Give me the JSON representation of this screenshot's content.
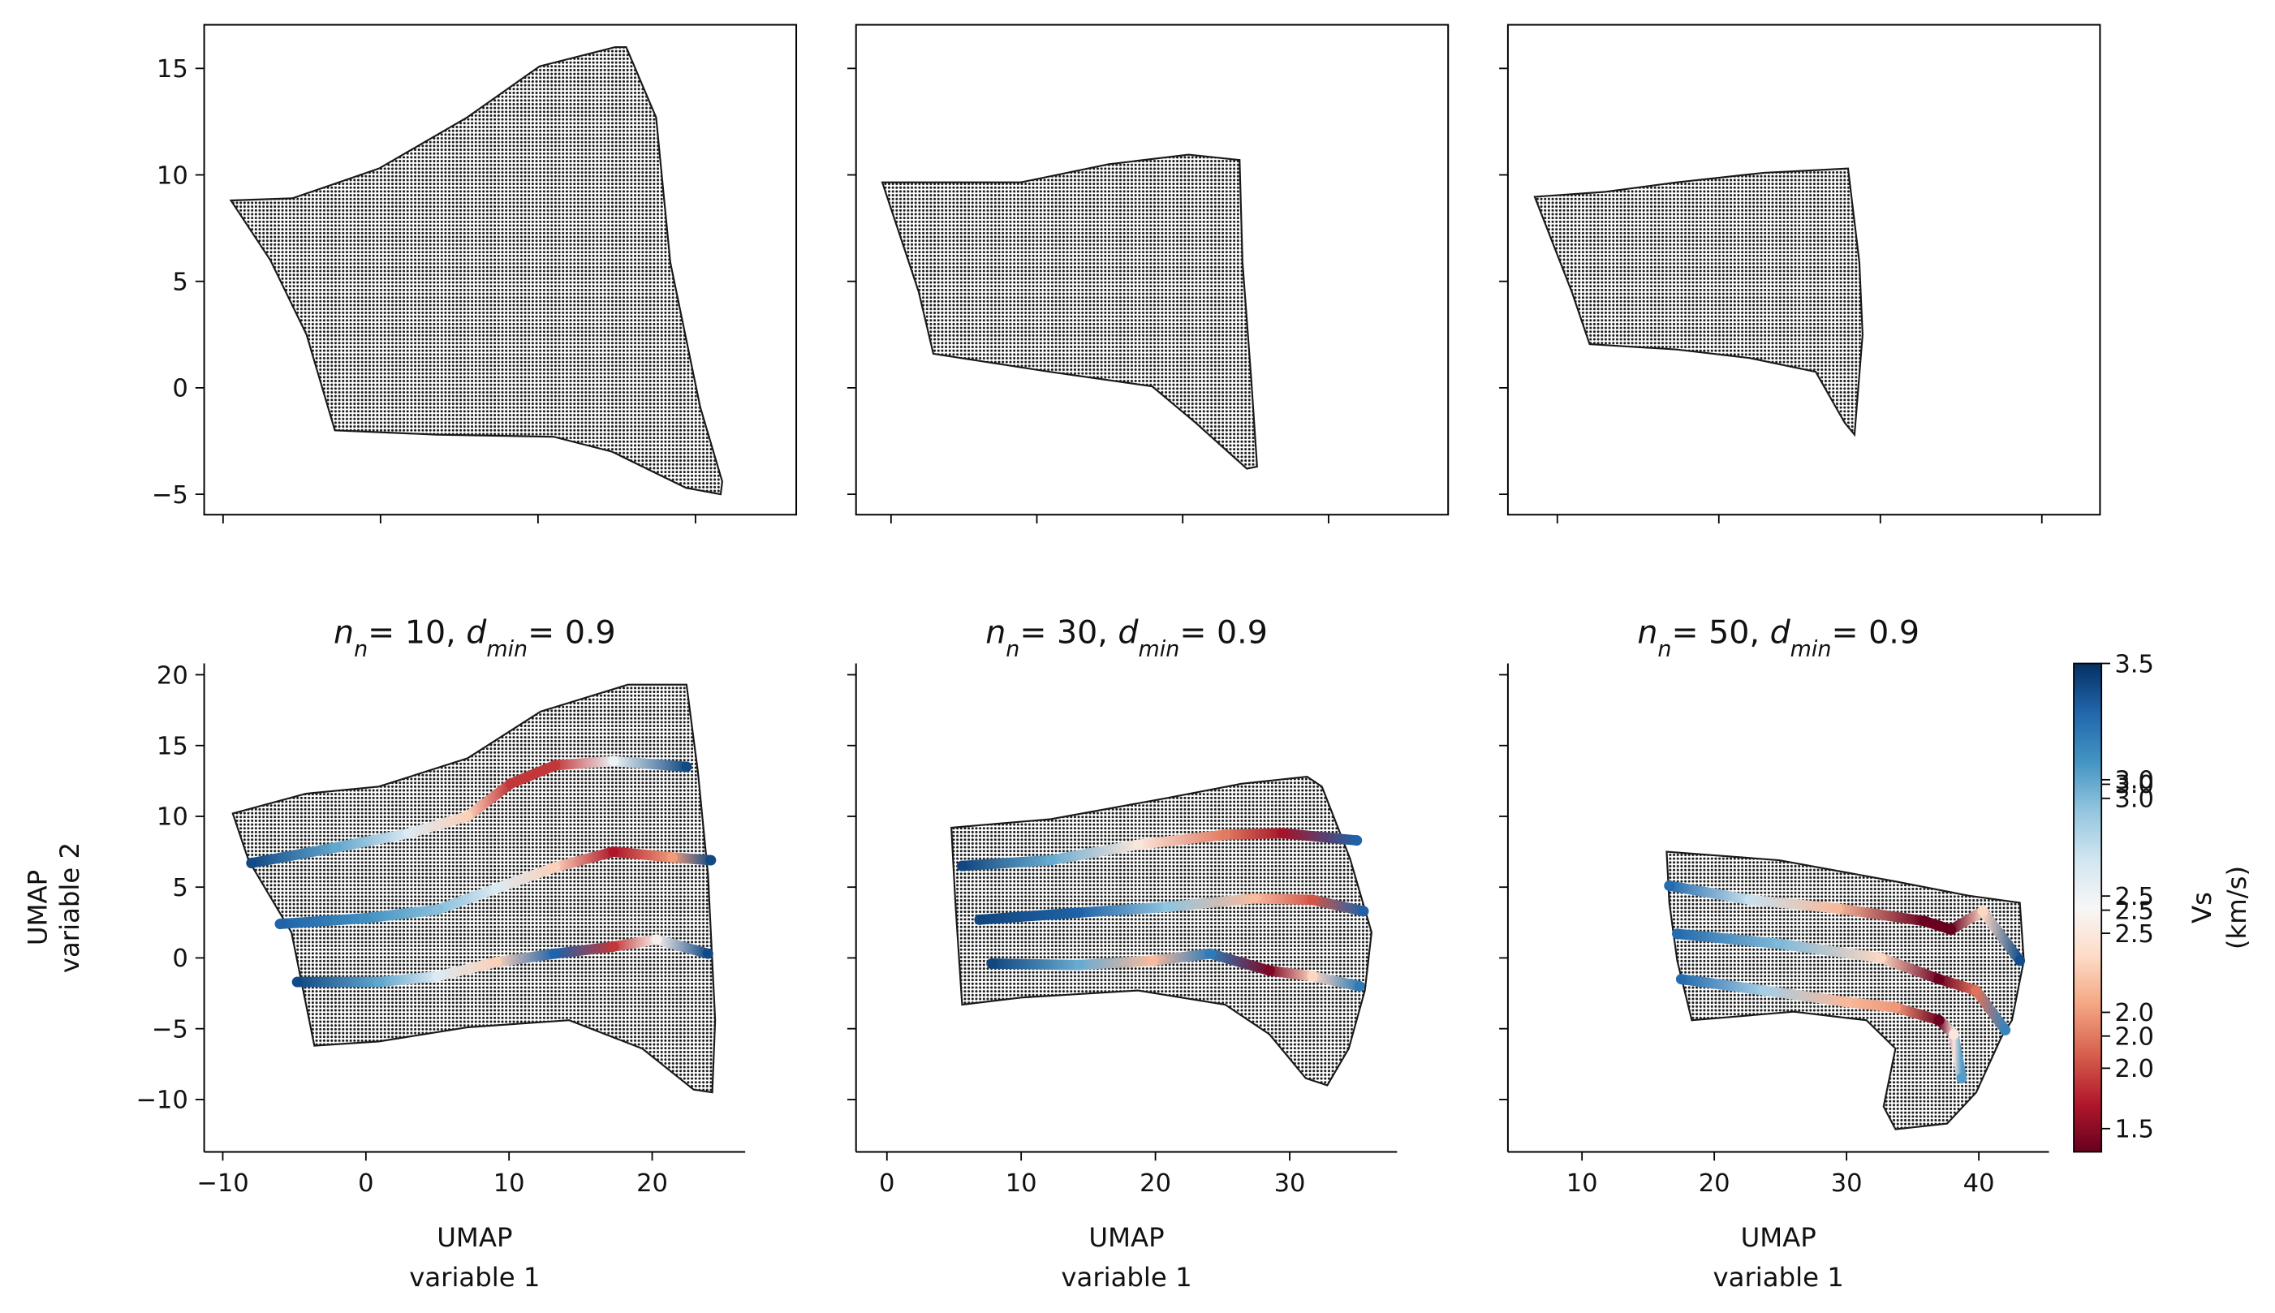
{
  "chart_data": [
    {
      "type": "scatter",
      "cloud_color": "#1a1a1a",
      "cloud": {
        "x": [
          -9.5,
          -5.6,
          -0.1,
          5.5,
          10.1,
          14.9,
          15.6,
          17.5,
          18.4,
          20.3,
          21.7,
          21.6,
          19.4,
          14.7,
          11.0,
          3.6,
          -2.9,
          -4.7,
          -7.0
        ],
        "y": [
          8.8,
          8.9,
          10.3,
          12.7,
          15.1,
          16.0,
          16.0,
          12.7,
          5.9,
          -0.9,
          -4.4,
          -5.0,
          -4.7,
          -3.0,
          -2.3,
          -2.2,
          -2.0,
          2.5,
          6.0
        ]
      },
      "xlim": [
        -11.2,
        26.4
      ],
      "ylim": [
        -5.96,
        17.05
      ],
      "xticks": [
        -10,
        0,
        10,
        20
      ],
      "show_xticklabels": false,
      "yticks": [
        {
          "value": -5,
          "label": "−5"
        },
        0,
        5,
        10,
        15
      ],
      "show_yticklabels": true,
      "spines": "box"
    },
    {
      "type": "scatter",
      "cloud_color": "#1a1a1a",
      "cloud": {
        "x": [
          -0.6,
          8.9,
          14.9,
          20.4,
          23.9,
          24.1,
          24.7,
          25.1,
          24.4,
          20.9,
          17.9,
          10.9,
          2.9,
          1.9
        ],
        "y": [
          9.65,
          9.65,
          10.5,
          10.95,
          10.7,
          5.9,
          0.4,
          -3.7,
          -3.8,
          -1.65,
          0.07,
          0.75,
          1.6,
          4.5
        ]
      },
      "xlim": [
        -2.4,
        38.2
      ],
      "ylim": [
        -5.96,
        17.05
      ],
      "xticks": [
        0,
        10,
        20,
        30
      ],
      "show_xticklabels": false,
      "yticks": [
        -5,
        0,
        5,
        10,
        15
      ],
      "show_yticklabels": false,
      "spines": "box"
    },
    {
      "type": "scatter",
      "cloud_color": "#1a1a1a",
      "cloud": {
        "x": [
          8.6,
          12.9,
          17.4,
          22.8,
          28.0,
          28.7,
          28.9,
          28.4,
          27.8,
          26.0,
          21.9,
          17.4,
          12.0,
          10.9
        ],
        "y": [
          8.97,
          9.2,
          9.65,
          10.1,
          10.3,
          5.9,
          2.5,
          -2.2,
          -1.65,
          0.75,
          1.4,
          1.8,
          2.05,
          4.5
        ]
      },
      "xlim": [
        6.94,
        43.6
      ],
      "ylim": [
        -5.96,
        17.05
      ],
      "xticks": [
        10,
        20,
        30,
        40
      ],
      "show_xticklabels": false,
      "yticks": [
        -5,
        0,
        5,
        10,
        15
      ],
      "show_yticklabels": false,
      "spines": "box"
    },
    {
      "type": "scatter",
      "cloud_color": "#1a1a1a",
      "title": [
        {
          "text": "n",
          "style": "italic"
        },
        {
          "text": "n",
          "style": "sub"
        },
        {
          "text": "= 10, "
        },
        {
          "text": "d",
          "style": "italic"
        },
        {
          "text": "min",
          "style": "sub"
        },
        {
          "text": "= 0.9"
        }
      ],
      "xlabel": [
        "UMAP",
        "variable 1"
      ],
      "ylabel": [
        "UMAP",
        "variable 2"
      ],
      "cloud": {
        "x": [
          -9.3,
          -4.2,
          0.9,
          7.1,
          12.2,
          18.3,
          22.4,
          23.2,
          23.9,
          24.4,
          24.2,
          22.9,
          19.3,
          14.2,
          7.1,
          0.9,
          -3.6,
          -5.2,
          -8.2
        ],
        "y": [
          10.2,
          11.6,
          12.1,
          14.1,
          17.4,
          19.3,
          19.3,
          13.1,
          5.9,
          -4.4,
          -9.5,
          -9.3,
          -6.4,
          -4.4,
          -4.9,
          -5.9,
          -6.2,
          1.8,
          6.9
        ]
      },
      "xlim": [
        -11.3,
        26.5
      ],
      "ylim": [
        -13.7,
        20.8
      ],
      "xticks": [
        {
          "value": -10,
          "label": "−10"
        },
        0,
        10,
        20
      ],
      "show_xticklabels": true,
      "yticks": [
        {
          "value": -10,
          "label": "−10"
        },
        {
          "value": -5,
          "label": "−5"
        },
        0,
        5,
        10,
        15,
        20
      ],
      "show_yticklabels": true,
      "spines": "left-bottom",
      "colorbar": 0,
      "series": [
        {
          "x": [
            -8.0,
            -2.1,
            3.0,
            7.1,
            10.1,
            13.2,
            17.3,
            22.4
          ],
          "y": [
            6.7,
            7.8,
            8.8,
            10.0,
            12.3,
            13.6,
            13.9,
            13.5
          ],
          "values": [
            3.4,
            3.0,
            2.6,
            2.2,
            1.7,
            1.7,
            2.5,
            3.4
          ]
        },
        {
          "x": [
            -6.0,
            -0.1,
            5.0,
            9.1,
            13.2,
            17.3,
            21.4,
            24.1
          ],
          "y": [
            2.4,
            2.8,
            3.4,
            4.9,
            6.4,
            7.5,
            7.1,
            6.9
          ],
          "values": [
            3.3,
            3.1,
            2.9,
            2.6,
            2.2,
            1.6,
            2.0,
            3.4
          ]
        },
        {
          "x": [
            -4.8,
            0.9,
            5.0,
            9.1,
            13.2,
            17.3,
            20.3,
            23.9
          ],
          "y": [
            -1.7,
            -1.7,
            -1.3,
            -0.3,
            0.3,
            0.8,
            1.3,
            0.3
          ],
          "values": [
            3.4,
            3.0,
            2.6,
            2.2,
            3.3,
            1.7,
            2.4,
            3.4
          ]
        }
      ]
    },
    {
      "type": "scatter",
      "cloud_color": "#1a1a1a",
      "title": [
        {
          "text": "n",
          "style": "italic"
        },
        {
          "text": "n",
          "style": "sub"
        },
        {
          "text": "= 30, "
        },
        {
          "text": "d",
          "style": "italic"
        },
        {
          "text": "min",
          "style": "sub"
        },
        {
          "text": "= 0.9"
        }
      ],
      "xlabel": [
        "UMAP",
        "variable 1"
      ],
      "cloud": {
        "x": [
          4.8,
          12.2,
          20.9,
          26.4,
          31.3,
          32.4,
          34.5,
          36.1,
          35.6,
          34.4,
          32.8,
          31.2,
          28.5,
          25.2,
          18.7,
          10.0,
          5.6,
          5.1
        ],
        "y": [
          9.2,
          9.8,
          11.3,
          12.3,
          12.8,
          12.1,
          7.0,
          1.8,
          -2.3,
          -6.4,
          -9.0,
          -8.5,
          -5.4,
          -3.3,
          -2.3,
          -2.8,
          -3.3,
          3.9
        ]
      },
      "xlim": [
        -2.3,
        38.0
      ],
      "ylim": [
        -13.7,
        20.8
      ],
      "xticks": [
        0,
        10,
        20,
        30
      ],
      "show_xticklabels": true,
      "yticks": [
        -10,
        -5,
        0,
        5,
        10,
        15,
        20
      ],
      "show_yticklabels": false,
      "spines": "left-bottom",
      "colorbar": 1,
      "series": [
        {
          "x": [
            5.6,
            12.2,
            18.7,
            25.2,
            29.5,
            35.0
          ],
          "y": [
            6.5,
            6.9,
            8.0,
            8.7,
            8.8,
            8.3
          ],
          "values": [
            3.4,
            3.0,
            2.4,
            2.0,
            1.7,
            3.3
          ]
        },
        {
          "x": [
            6.9,
            14.3,
            20.9,
            27.4,
            31.7,
            35.5
          ],
          "y": [
            2.7,
            3.2,
            3.6,
            4.2,
            4.1,
            3.3
          ],
          "values": [
            3.4,
            3.3,
            2.9,
            2.2,
            1.9,
            3.3
          ]
        },
        {
          "x": [
            7.8,
            14.3,
            19.8,
            24.1,
            28.5,
            31.7,
            35.2
          ],
          "y": [
            -0.4,
            -0.5,
            -0.2,
            0.3,
            -0.9,
            -1.3,
            -2.0
          ],
          "values": [
            3.4,
            3.0,
            2.2,
            3.2,
            1.6,
            2.3,
            3.2
          ]
        }
      ]
    },
    {
      "type": "scatter",
      "cloud_color": "#1a1a1a",
      "title": [
        {
          "text": "n",
          "style": "italic"
        },
        {
          "text": "n",
          "style": "sub"
        },
        {
          "text": "= 50, "
        },
        {
          "text": "d",
          "style": "italic"
        },
        {
          "text": "min",
          "style": "sub"
        },
        {
          "text": "= 0.9"
        }
      ],
      "xlabel": [
        "UMAP",
        "variable 1"
      ],
      "cloud": {
        "x": [
          16.4,
          24.9,
          33.7,
          39.2,
          43.1,
          43.4,
          42.5,
          41.7,
          39.8,
          37.6,
          33.7,
          32.8,
          33.7,
          31.5,
          26.0,
          18.3,
          17.2,
          16.6
        ],
        "y": [
          7.5,
          6.9,
          5.4,
          4.4,
          3.9,
          -0.2,
          -4.4,
          -5.6,
          -9.5,
          -11.7,
          -12.1,
          -10.5,
          -6.4,
          -4.4,
          -3.8,
          -4.4,
          -0.2,
          3.9
        ]
      },
      "xlim": [
        4.4,
        45.3
      ],
      "ylim": [
        -13.7,
        20.8
      ],
      "xticks": [
        10,
        20,
        30,
        40
      ],
      "show_xticklabels": true,
      "yticks": [
        -10,
        -5,
        0,
        5,
        10,
        15,
        20
      ],
      "show_yticklabels": false,
      "spines": "left-bottom",
      "colorbar": 2,
      "series": [
        {
          "x": [
            16.6,
            22.7,
            29.3,
            35.9,
            37.9,
            40.3,
            43.1
          ],
          "y": [
            5.1,
            4.1,
            3.5,
            2.6,
            2.0,
            3.3,
            -0.2
          ],
          "values": [
            3.3,
            2.8,
            2.3,
            1.7,
            1.6,
            2.4,
            3.4
          ]
        },
        {
          "x": [
            17.2,
            24.9,
            32.6,
            37.0,
            39.8,
            42.0
          ],
          "y": [
            1.7,
            1.0,
            0.0,
            -1.5,
            -2.3,
            -5.1
          ],
          "values": [
            3.3,
            3.0,
            2.4,
            1.7,
            2.1,
            3.2
          ]
        },
        {
          "x": [
            17.5,
            23.8,
            29.9,
            33.7,
            37.0,
            38.1,
            38.7
          ],
          "y": [
            -1.5,
            -2.3,
            -3.1,
            -3.5,
            -4.4,
            -5.4,
            -8.5
          ],
          "values": [
            3.3,
            2.9,
            2.3,
            2.2,
            1.7,
            2.5,
            3.1
          ]
        }
      ]
    },
    {
      "type": "colorbar",
      "label": [
        "Vs",
        "(km/s)"
      ],
      "colors": [
        "#67001f",
        "#b2182b",
        "#d6604d",
        "#f4a582",
        "#fddbc7",
        "#f7f7f7",
        "#d1e5f0",
        "#92c5de",
        "#4393c3",
        "#2166ac",
        "#053061"
      ],
      "axes": [
        {
          "ylim": [
            1.4,
            3.5
          ],
          "yticks": [
            1.5,
            {
              "value": 2,
              "label": "2.0"
            },
            2.5,
            {
              "value": 3,
              "label": "3.0"
            },
            3.5
          ]
        },
        {
          "ylim": [
            1.54,
            3.48
          ],
          "yticks": [
            {
              "value": 2,
              "label": "2.0"
            },
            2.5,
            {
              "value": 3,
              "label": "3.0"
            }
          ]
        },
        {
          "ylim": [
            1.69,
            3.5
          ],
          "yticks": [
            {
              "value": 2,
              "label": "2.0"
            },
            2.5,
            {
              "value": 3,
              "label": "3.0"
            }
          ]
        }
      ]
    }
  ]
}
